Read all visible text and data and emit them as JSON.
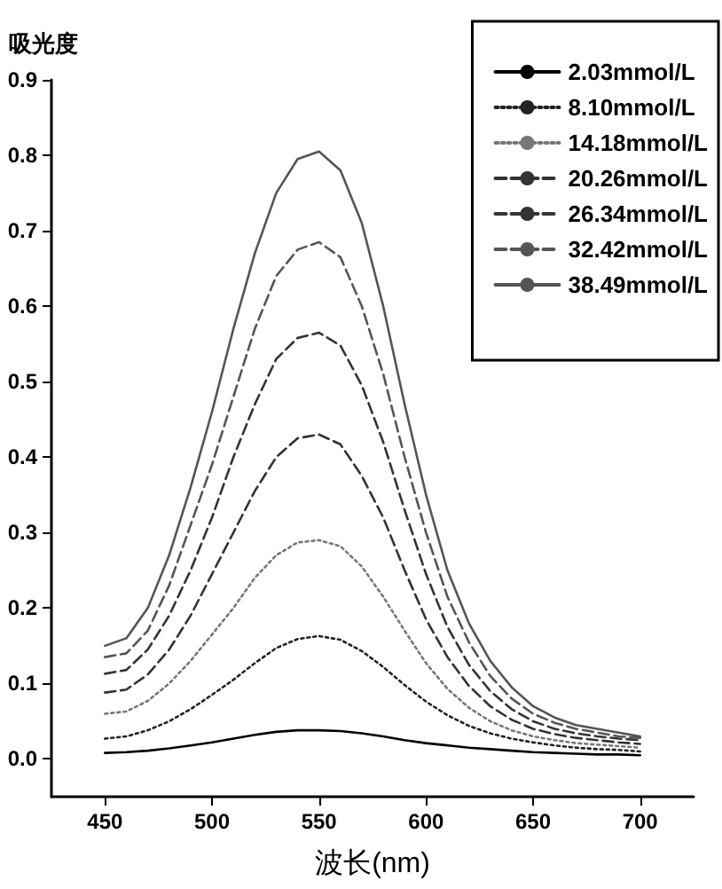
{
  "chart_data": {
    "type": "line",
    "xlabel": "波长(nm)",
    "ylabel": "吸光度",
    "x": [
      450,
      460,
      470,
      480,
      490,
      500,
      510,
      520,
      530,
      540,
      550,
      560,
      570,
      580,
      590,
      600,
      610,
      620,
      630,
      640,
      650,
      660,
      670,
      680,
      690,
      700
    ],
    "xlim": [
      425,
      725
    ],
    "xticks": [
      450,
      500,
      550,
      600,
      650,
      700
    ],
    "ylim": [
      -0.05,
      0.9
    ],
    "yticks": [
      {
        "value": 0,
        "label": "0.0"
      },
      {
        "value": 0.1,
        "label": "0.1"
      },
      {
        "value": 0.2,
        "label": "0.2"
      },
      {
        "value": 0.3,
        "label": "0.3"
      },
      {
        "value": 0.4,
        "label": "0.4"
      },
      {
        "value": 0.5,
        "label": "0.5"
      },
      {
        "value": 0.6,
        "label": "0.6"
      },
      {
        "value": 0.7,
        "label": "0.7"
      },
      {
        "value": 0.8,
        "label": "0.8"
      },
      {
        "value": 0.9,
        "label": "0.9"
      }
    ],
    "grid": false,
    "legend": "top right",
    "marker": "none",
    "series": [
      {
        "name": "2.03mmol/L",
        "color": "#000000",
        "line_style": "solid",
        "values": [
          0.008,
          0.009,
          0.011,
          0.014,
          0.018,
          0.022,
          0.027,
          0.032,
          0.036,
          0.038,
          0.038,
          0.037,
          0.034,
          0.03,
          0.025,
          0.021,
          0.018,
          0.015,
          0.013,
          0.011,
          0.009,
          0.008,
          0.007,
          0.006,
          0.006,
          0.005
        ]
      },
      {
        "name": "8.10mmol/L",
        "color": "#222222",
        "line_style": "dotted",
        "values": [
          0.027,
          0.03,
          0.038,
          0.05,
          0.066,
          0.085,
          0.105,
          0.127,
          0.147,
          0.159,
          0.163,
          0.158,
          0.143,
          0.122,
          0.098,
          0.076,
          0.058,
          0.044,
          0.034,
          0.027,
          0.022,
          0.018,
          0.015,
          0.013,
          0.012,
          0.01
        ]
      },
      {
        "name": "14.18mmol/L",
        "color": "#777777",
        "line_style": "dotted",
        "values": [
          0.06,
          0.063,
          0.077,
          0.1,
          0.13,
          0.165,
          0.2,
          0.24,
          0.27,
          0.287,
          0.29,
          0.282,
          0.255,
          0.215,
          0.17,
          0.127,
          0.093,
          0.068,
          0.05,
          0.038,
          0.03,
          0.025,
          0.021,
          0.019,
          0.017,
          0.015
        ]
      },
      {
        "name": "20.26mmol/L",
        "color": "#333333",
        "line_style": "dashed",
        "values": [
          0.088,
          0.092,
          0.112,
          0.145,
          0.19,
          0.245,
          0.3,
          0.355,
          0.4,
          0.425,
          0.43,
          0.417,
          0.375,
          0.32,
          0.25,
          0.185,
          0.135,
          0.097,
          0.07,
          0.052,
          0.04,
          0.033,
          0.028,
          0.025,
          0.022,
          0.02
        ]
      },
      {
        "name": "26.34mmol/L",
        "color": "#333333",
        "line_style": "dashed",
        "values": [
          0.113,
          0.118,
          0.145,
          0.19,
          0.25,
          0.32,
          0.4,
          0.47,
          0.53,
          0.558,
          0.565,
          0.548,
          0.495,
          0.42,
          0.33,
          0.245,
          0.175,
          0.125,
          0.09,
          0.066,
          0.05,
          0.04,
          0.034,
          0.03,
          0.027,
          0.025
        ]
      },
      {
        "name": "32.42mmol/L",
        "color": "#555555",
        "line_style": "dashed",
        "values": [
          0.135,
          0.14,
          0.17,
          0.23,
          0.31,
          0.39,
          0.48,
          0.57,
          0.64,
          0.675,
          0.685,
          0.665,
          0.6,
          0.51,
          0.4,
          0.3,
          0.215,
          0.155,
          0.11,
          0.08,
          0.06,
          0.048,
          0.04,
          0.035,
          0.03,
          0.028
        ]
      },
      {
        "name": "38.49mmol/L",
        "color": "#555555",
        "line_style": "solid",
        "values": [
          0.15,
          0.16,
          0.2,
          0.27,
          0.36,
          0.46,
          0.57,
          0.67,
          0.75,
          0.795,
          0.805,
          0.78,
          0.71,
          0.6,
          0.47,
          0.35,
          0.25,
          0.18,
          0.13,
          0.095,
          0.07,
          0.055,
          0.045,
          0.04,
          0.035,
          0.03
        ]
      }
    ]
  }
}
